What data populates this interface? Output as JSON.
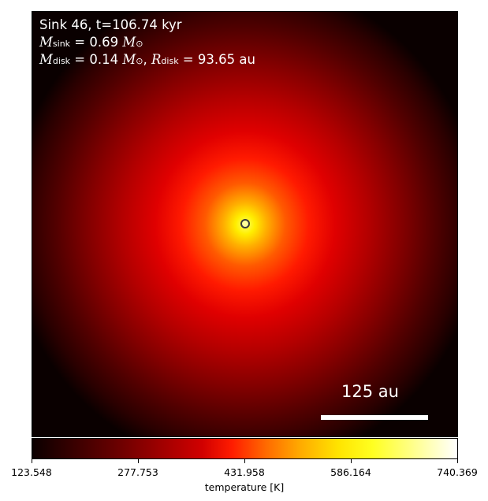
{
  "chart_data": {
    "type": "heatmap",
    "annotation": {
      "line1": "Sink 46, t=106.74 kyr",
      "msink_symbol": "M",
      "msink_sub": "sink",
      "msink_value": " = 0.69 ",
      "msink_unit": "M",
      "msink_unit_sub": "⊙",
      "mdisk_symbol": "M",
      "mdisk_sub": "disk",
      "mdisk_value": " = 0.14 ",
      "mdisk_unit": "M",
      "mdisk_unit_sub": "⊙",
      "rdisk_symbol": "R",
      "rdisk_sub": "disk",
      "rdisk_value": " = 93.65 au"
    },
    "scale_bar_label": "125 au",
    "colorbar": {
      "label": "temperature [K]",
      "colormap": "hot",
      "vmin": 123.548,
      "vmax": 740.369,
      "ticks": [
        "123.548",
        "277.753",
        "431.958",
        "586.164",
        "740.369"
      ]
    }
  }
}
